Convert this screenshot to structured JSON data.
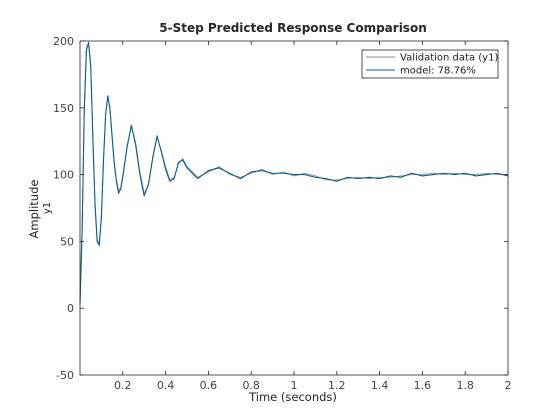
{
  "chart_data": {
    "type": "line",
    "title": "5-Step Predicted Response Comparison",
    "xlabel": "Time (seconds)",
    "ylabel": "Amplitude",
    "ylabel_sub": "y1",
    "xlim": [
      0,
      2
    ],
    "ylim": [
      -50,
      200
    ],
    "xticks": [
      0.2,
      0.4,
      0.6,
      0.8,
      1,
      1.2,
      1.4,
      1.6,
      1.8,
      2
    ],
    "xtick_labels": [
      "0.2",
      "0.4",
      "0.6",
      "0.8",
      "1",
      "1.2",
      "1.4",
      "1.6",
      "1.8",
      "2"
    ],
    "yticks": [
      -50,
      0,
      50,
      100,
      150,
      200
    ],
    "ytick_labels": [
      "-50",
      "0",
      "50",
      "100",
      "150",
      "200"
    ],
    "grid": false,
    "legend_position": "top-right",
    "series": [
      {
        "name": "Validation data (y1)",
        "color": "#8c8c8c",
        "x": [
          0,
          0.01,
          0.02,
          0.03,
          0.04,
          0.05,
          0.06,
          0.07,
          0.08,
          0.09,
          0.1,
          0.11,
          0.12,
          0.13,
          0.14,
          0.15,
          0.16,
          0.17,
          0.18,
          0.19,
          0.2,
          0.22,
          0.24,
          0.26,
          0.28,
          0.3,
          0.32,
          0.34,
          0.36,
          0.38,
          0.4,
          0.42,
          0.44,
          0.46,
          0.48,
          0.5,
          0.55,
          0.6,
          0.65,
          0.7,
          0.75,
          0.8,
          0.85,
          0.9,
          0.95,
          1.0,
          1.05,
          1.1,
          1.15,
          1.2,
          1.25,
          1.3,
          1.35,
          1.4,
          1.45,
          1.5,
          1.55,
          1.6,
          1.65,
          1.7,
          1.75,
          1.8,
          1.85,
          1.9,
          1.95,
          2.0
        ],
        "values": [
          5,
          60,
          150,
          195,
          198,
          180,
          130,
          80,
          52,
          48,
          70,
          110,
          145,
          158,
          150,
          130,
          110,
          96,
          88,
          90,
          100,
          120,
          136,
          124,
          102,
          86,
          92,
          112,
          128,
          118,
          106,
          96,
          98,
          108,
          112,
          106,
          98,
          102,
          106,
          100,
          98,
          101,
          104,
          100,
          102,
          99,
          101,
          99,
          96,
          96,
          97,
          98,
          97,
          98,
          98,
          99,
          100,
          100,
          101,
          100,
          101,
          100,
          100,
          101,
          100,
          100
        ]
      },
      {
        "name": "model: 78.76%",
        "color": "#0b5e91",
        "x": [
          0,
          0.01,
          0.02,
          0.03,
          0.04,
          0.05,
          0.06,
          0.07,
          0.08,
          0.09,
          0.1,
          0.11,
          0.12,
          0.13,
          0.14,
          0.15,
          0.16,
          0.17,
          0.18,
          0.19,
          0.2,
          0.22,
          0.24,
          0.26,
          0.28,
          0.3,
          0.32,
          0.34,
          0.36,
          0.38,
          0.4,
          0.42,
          0.44,
          0.46,
          0.48,
          0.5,
          0.55,
          0.6,
          0.65,
          0.7,
          0.75,
          0.8,
          0.85,
          0.9,
          0.95,
          1.0,
          1.05,
          1.1,
          1.15,
          1.2,
          1.25,
          1.3,
          1.35,
          1.4,
          1.45,
          1.5,
          1.55,
          1.6,
          1.65,
          1.7,
          1.75,
          1.8,
          1.85,
          1.9,
          1.95,
          2.0
        ],
        "values": [
          3,
          58,
          148,
          193,
          199,
          182,
          128,
          78,
          50,
          47,
          68,
          112,
          146,
          159,
          149,
          128,
          108,
          95,
          86,
          89,
          98,
          121,
          137,
          122,
          100,
          84,
          93,
          113,
          129,
          117,
          104,
          95,
          97,
          109,
          111,
          105,
          97,
          103,
          105,
          101,
          97,
          102,
          103,
          101,
          101,
          100,
          100,
          98,
          97,
          95,
          98,
          97,
          98,
          97,
          99,
          98,
          101,
          99,
          100,
          101,
          100,
          101,
          99,
          100,
          101,
          99
        ]
      }
    ]
  }
}
